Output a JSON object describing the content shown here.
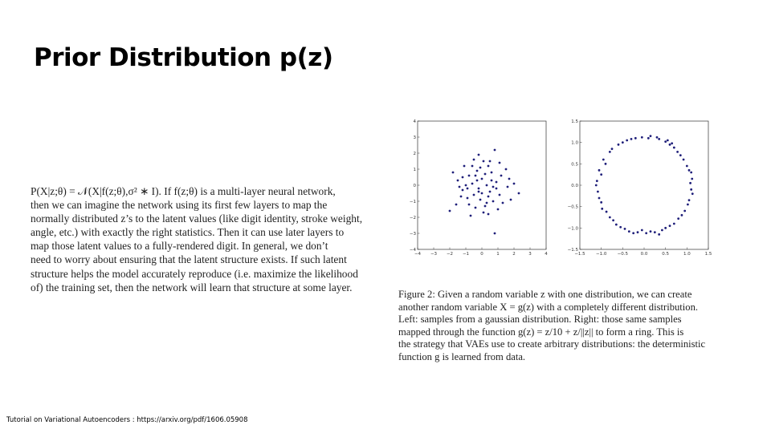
{
  "slide": {
    "title": "Prior Distribution p(z)",
    "footer": "Tutorial on Variational Autoencoders : https://arxiv.org/pdf/1606.05908"
  },
  "body_lines": [
    "P(X|z;θ) = 𝒩(X|f(z;θ),σ² ∗ I). If f(z;θ) is a multi-layer neural network,",
    "then we can imagine the network using its first few layers to map the",
    "normally distributed z’s to the latent values (like digit identity, stroke weight,",
    "angle, etc.) with exactly the right statistics. Then it can use later layers to",
    "map those latent values to a fully-rendered digit. In general, we don’t",
    "need to worry about ensuring that the latent structure exists. If such latent",
    "structure helps the model accurately reproduce (i.e. maximize the likelihood",
    "of) the training set, then the network will learn that structure at some layer."
  ],
  "caption_lines": [
    "Figure 2: Given a random variable z with one distribution, we can create",
    "another random variable X = g(z) with a completely different distribution.",
    "Left: samples from a gaussian distribution. Right: those same samples",
    "mapped through the function g(z) = z/10 + z/||z|| to form a ring. This is",
    "the strategy that VAEs use to create arbitrary distributions: the deterministic",
    "function g is learned from data."
  ],
  "chart_data": [
    {
      "type": "scatter",
      "xlim": [
        -4,
        4
      ],
      "ylim": [
        -4,
        4
      ],
      "xticks": [
        "−4",
        "−3",
        "−2",
        "−1",
        "0",
        "1",
        "2",
        "3",
        "4"
      ],
      "yticks": [
        "4",
        "3",
        "2",
        "1",
        "0",
        "−1",
        "−2",
        "−3",
        "−4"
      ],
      "marker_color": "#1f1f7a",
      "points": [
        [
          -0.5,
          1.6
        ],
        [
          0.1,
          1.5
        ],
        [
          0.8,
          2.2
        ],
        [
          -1.1,
          1.2
        ],
        [
          -0.3,
          0.9
        ],
        [
          0.4,
          1.2
        ],
        [
          -0.8,
          0.6
        ],
        [
          0.0,
          0.4
        ],
        [
          0.6,
          0.8
        ],
        [
          1.2,
          0.6
        ],
        [
          -1.5,
          0.3
        ],
        [
          -0.6,
          0.1
        ],
        [
          0.3,
          0.0
        ],
        [
          0.9,
          0.2
        ],
        [
          1.6,
          -0.1
        ],
        [
          -1.2,
          -0.3
        ],
        [
          -0.2,
          -0.2
        ],
        [
          0.5,
          -0.4
        ],
        [
          1.1,
          -0.6
        ],
        [
          -0.9,
          -0.8
        ],
        [
          -0.1,
          -0.9
        ],
        [
          0.7,
          -1.0
        ],
        [
          1.8,
          -0.9
        ],
        [
          -1.6,
          -1.2
        ],
        [
          -0.4,
          -1.4
        ],
        [
          0.2,
          -1.3
        ],
        [
          1.0,
          -1.5
        ],
        [
          -0.7,
          -1.9
        ],
        [
          0.4,
          -1.8
        ],
        [
          0.8,
          -3.0
        ],
        [
          2.3,
          -0.5
        ],
        [
          -1.8,
          0.8
        ],
        [
          1.5,
          1.0
        ],
        [
          -0.2,
          1.9
        ],
        [
          -0.9,
          -0.2
        ],
        [
          0.0,
          -0.5
        ],
        [
          0.6,
          0.3
        ],
        [
          -0.5,
          -0.6
        ],
        [
          1.3,
          -1.1
        ],
        [
          -1.3,
          -0.7
        ],
        [
          0.2,
          0.7
        ],
        [
          -0.3,
          0.3
        ],
        [
          0.9,
          -0.2
        ],
        [
          -1.0,
          0.0
        ],
        [
          0.4,
          -0.7
        ],
        [
          -0.6,
          1.2
        ],
        [
          1.7,
          0.4
        ],
        [
          -2.0,
          -1.6
        ],
        [
          -0.1,
          1.1
        ],
        [
          0.3,
          -1.1
        ],
        [
          -0.8,
          -1.2
        ],
        [
          1.1,
          1.4
        ],
        [
          2.0,
          0.1
        ],
        [
          -1.4,
          -0.1
        ],
        [
          0.1,
          -1.7
        ],
        [
          -0.4,
          0.6
        ],
        [
          0.7,
          -0.1
        ],
        [
          -0.2,
          -0.4
        ],
        [
          0.5,
          1.5
        ],
        [
          -1.2,
          0.5
        ]
      ]
    },
    {
      "type": "scatter",
      "xlim": [
        -1.5,
        1.5
      ],
      "ylim": [
        -1.5,
        1.5
      ],
      "xticks": [
        "−1.5",
        "−1.0",
        "−0.5",
        "0.0",
        "0.5",
        "1.0",
        "1.5"
      ],
      "yticks": [
        "1.5",
        "1.0",
        "0.5",
        "0.0",
        "−0.5",
        "−1.0",
        "−1.5"
      ],
      "marker_color": "#1f1f7a",
      "points": [
        [
          -0.05,
          1.12
        ],
        [
          0.1,
          1.1
        ],
        [
          0.35,
          1.08
        ],
        [
          0.5,
          1.02
        ],
        [
          0.6,
          0.95
        ],
        [
          0.78,
          0.78
        ],
        [
          0.92,
          0.6
        ],
        [
          1.05,
          0.35
        ],
        [
          1.12,
          0.15
        ],
        [
          1.1,
          -0.1
        ],
        [
          1.05,
          -0.35
        ],
        [
          0.95,
          -0.6
        ],
        [
          0.8,
          -0.78
        ],
        [
          0.6,
          -0.95
        ],
        [
          0.42,
          -1.05
        ],
        [
          0.25,
          -1.1
        ],
        [
          0.05,
          -1.12
        ],
        [
          -0.15,
          -1.1
        ],
        [
          -0.35,
          -1.08
        ],
        [
          -0.55,
          -0.98
        ],
        [
          -0.72,
          -0.82
        ],
        [
          -0.88,
          -0.62
        ],
        [
          -1.0,
          -0.4
        ],
        [
          -1.08,
          -0.15
        ],
        [
          -1.1,
          0.1
        ],
        [
          -1.05,
          0.35
        ],
        [
          -0.95,
          0.6
        ],
        [
          -0.8,
          0.78
        ],
        [
          -0.6,
          0.95
        ],
        [
          -0.4,
          1.05
        ],
        [
          -0.2,
          1.1
        ],
        [
          0.3,
          1.12
        ],
        [
          0.7,
          0.88
        ],
        [
          1.0,
          0.45
        ],
        [
          1.13,
          -0.2
        ],
        [
          0.88,
          -0.7
        ],
        [
          0.5,
          -1.0
        ],
        [
          -0.05,
          -1.05
        ],
        [
          -0.45,
          -1.02
        ],
        [
          -0.8,
          -0.75
        ],
        [
          -1.05,
          -0.3
        ],
        [
          -1.0,
          0.25
        ],
        [
          -0.75,
          0.85
        ],
        [
          -0.3,
          1.08
        ],
        [
          0.15,
          1.15
        ],
        [
          0.65,
          0.98
        ],
        [
          1.08,
          0.05
        ],
        [
          0.7,
          -0.9
        ],
        [
          0.35,
          -1.15
        ],
        [
          -0.25,
          -1.12
        ],
        [
          -0.65,
          -0.92
        ],
        [
          -1.12,
          0.0
        ],
        [
          -0.9,
          0.5
        ],
        [
          0.55,
          1.05
        ],
        [
          1.02,
          -0.45
        ],
        [
          0.15,
          -1.08
        ],
        [
          -0.5,
          1.0
        ],
        [
          0.85,
          0.7
        ],
        [
          -0.98,
          -0.55
        ],
        [
          1.1,
          0.3
        ]
      ]
    }
  ]
}
